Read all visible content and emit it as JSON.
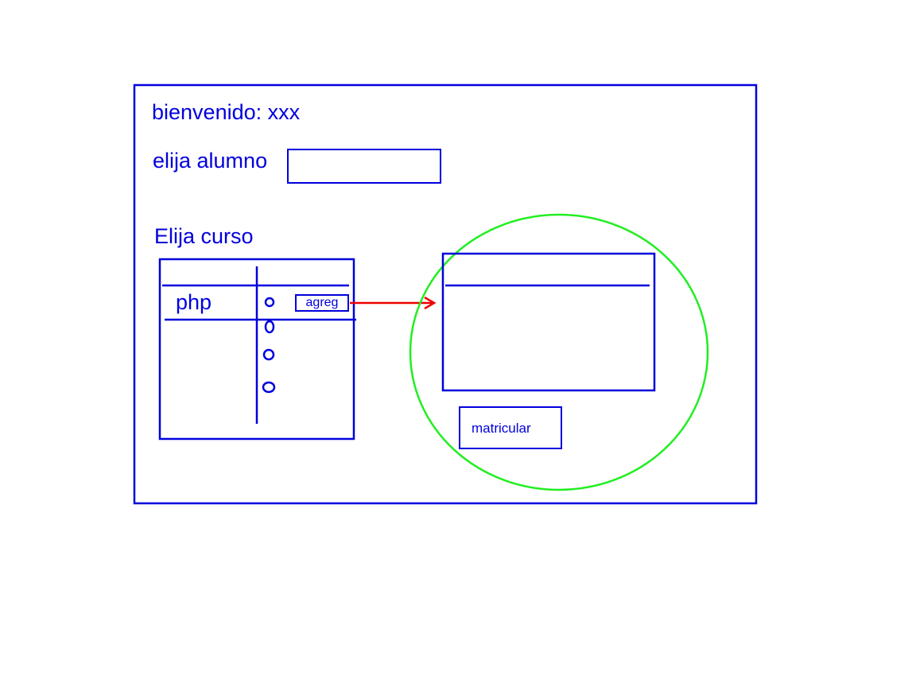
{
  "header": {
    "welcome_text": "bienvenido: xxx"
  },
  "student": {
    "label": "elija alumno",
    "selected_value": ""
  },
  "course": {
    "label": "Elija curso",
    "rows": [
      {
        "name": "php",
        "add_label": "agreg"
      }
    ]
  },
  "enrollment": {
    "submit_label": "matricular"
  },
  "colors": {
    "ink": "#0000dd",
    "arrow": "#ee0000",
    "highlight": "#22ee22"
  }
}
